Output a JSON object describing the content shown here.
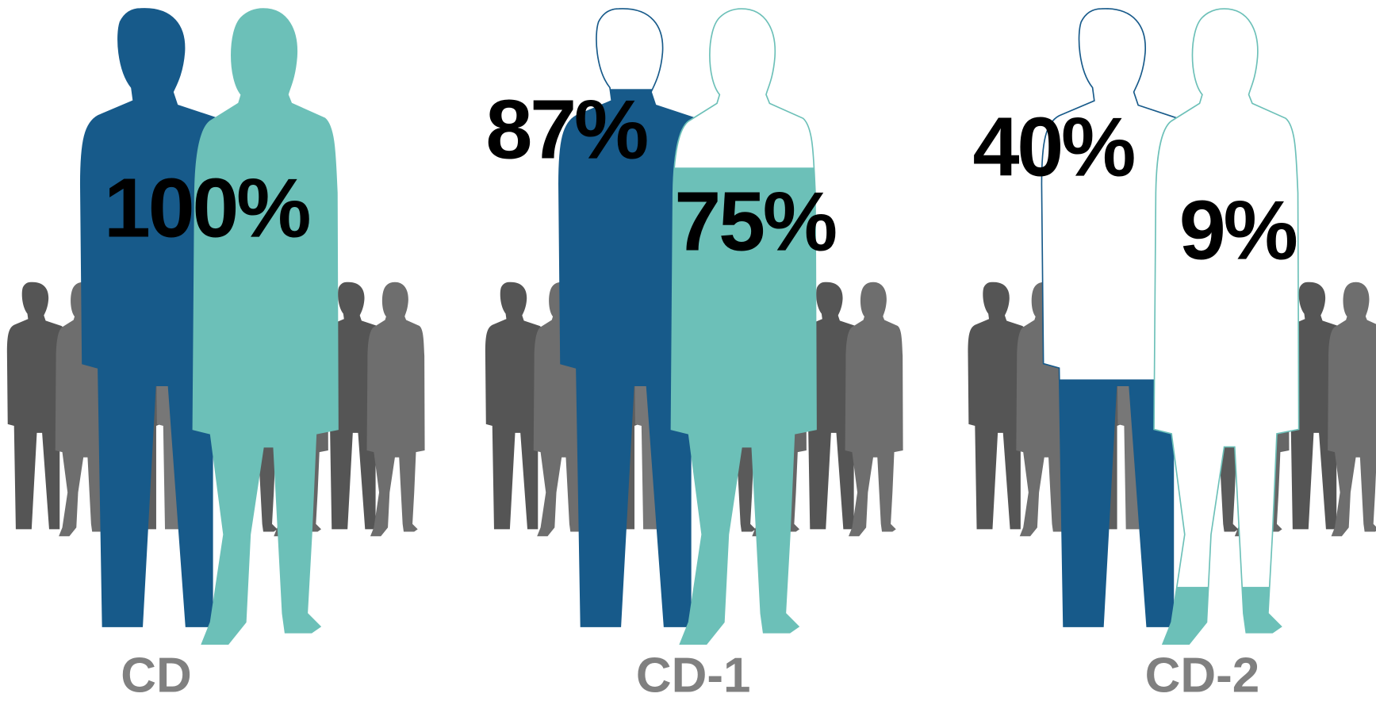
{
  "chart_data": {
    "type": "pictograph",
    "categories": [
      "CD",
      "CD-1",
      "CD-2"
    ],
    "ylim": [
      0,
      100
    ],
    "series": [
      {
        "color": "#175a8a",
        "values": [
          100,
          87,
          40
        ],
        "value_labels": [
          "100%",
          "87%",
          "40%"
        ]
      },
      {
        "color": "#6cc0b8",
        "values": [
          100,
          75,
          9
        ],
        "value_labels": [
          null,
          "75%",
          "9%"
        ]
      }
    ]
  }
}
